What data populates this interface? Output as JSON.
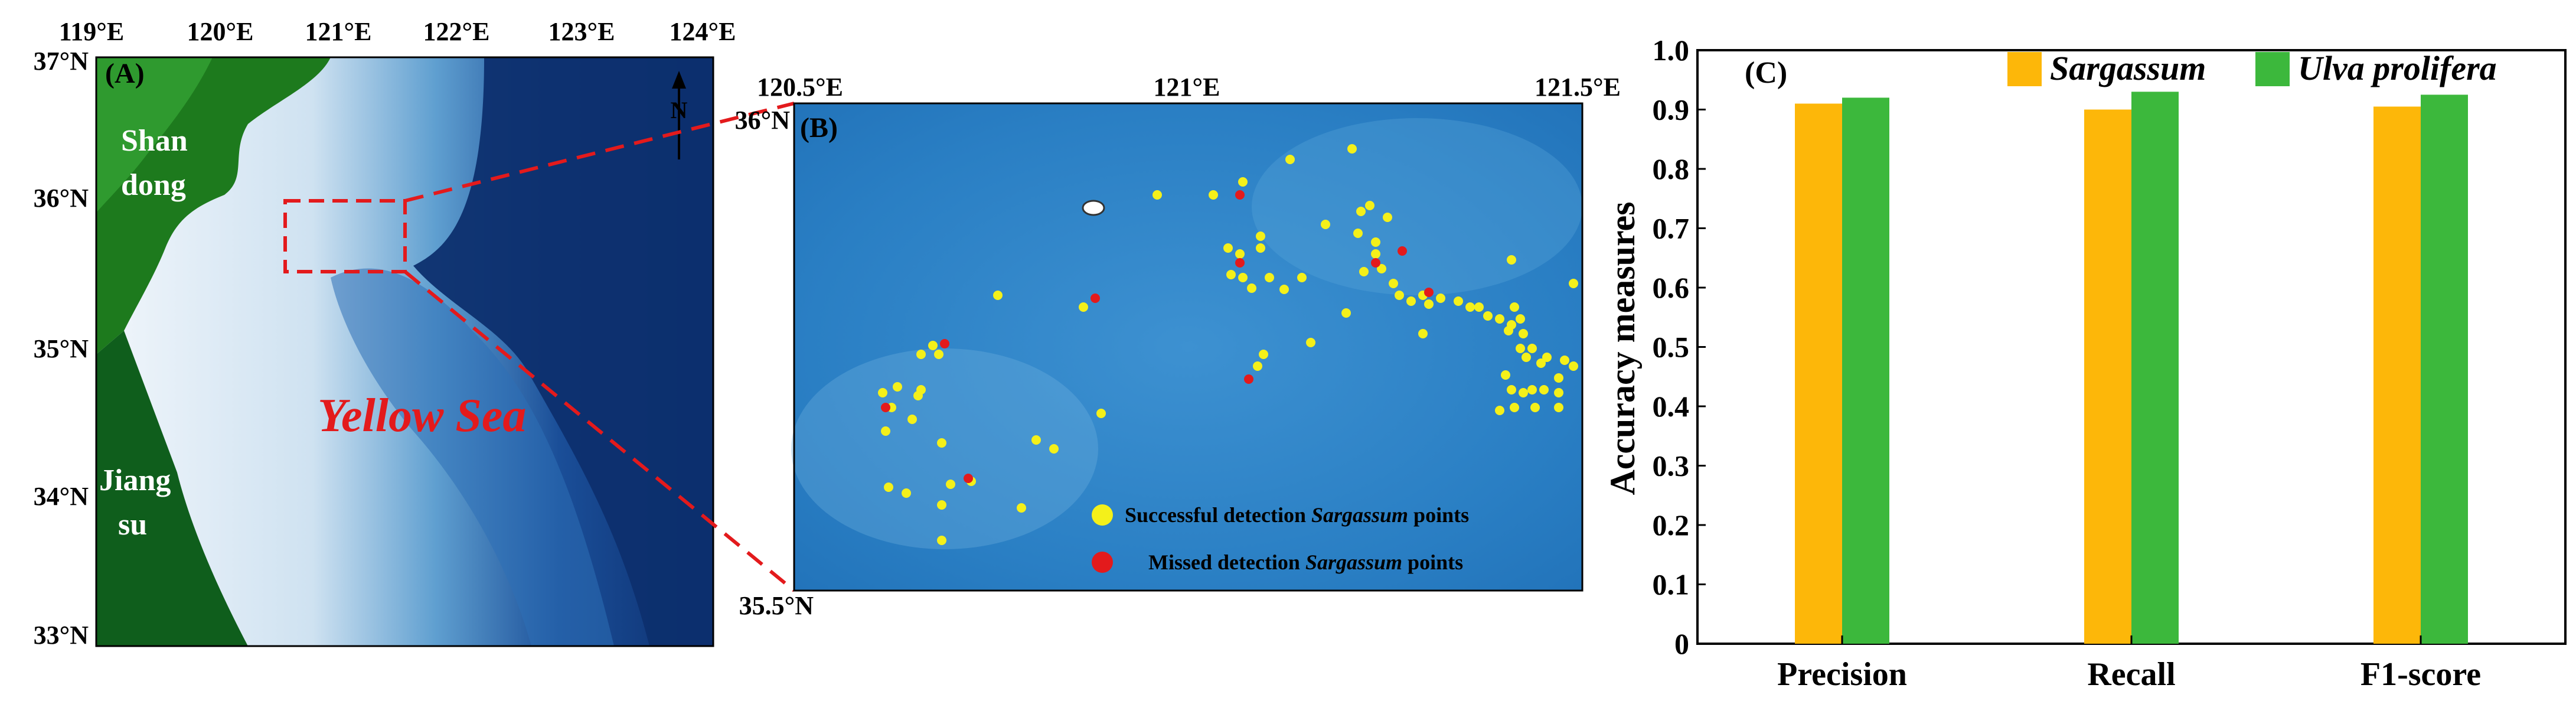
{
  "panel_a": {
    "label": "(A)",
    "lon_ticks": [
      "119°E",
      "120°E",
      "121°E",
      "122°E",
      "123°E",
      "124°E"
    ],
    "lat_ticks": [
      "37°N",
      "36°N",
      "35°N",
      "34°N",
      "33°N"
    ],
    "region_labels": {
      "shandong_1": "Shan",
      "shandong_2": "dong",
      "jiangsu_1": "Jiang",
      "jiangsu_2": "su",
      "sea": "Yellow Sea"
    },
    "north_label": "N",
    "colors": {
      "land": "#1d7a1d",
      "sea_deep": "#0d2f6e",
      "sea_shallow": "#e8f1f8",
      "highlight": "#e31a1c"
    }
  },
  "panel_b": {
    "label": "(B)",
    "lon_ticks": [
      "120.5°E",
      "121°E",
      "121.5°E"
    ],
    "lat_ticks": [
      "36°N",
      "35.5°N"
    ],
    "legend": {
      "success_prefix": "Successful detection ",
      "success_species": "Sargassum",
      "success_suffix": " points",
      "missed_prefix": "Missed detection ",
      "missed_species": "Sargassum",
      "missed_suffix": " points"
    },
    "colors": {
      "success": "#f4f01a",
      "missed": "#e31a1c",
      "water": "#2b83c8"
    }
  },
  "chart_data": {
    "type": "bar",
    "panel_label": "(C)",
    "categories": [
      "Precision",
      "Recall",
      "F1-score"
    ],
    "series": [
      {
        "name": "Sargassum",
        "color": "#fdb709",
        "values": [
          0.91,
          0.9,
          0.905
        ]
      },
      {
        "name": "Ulva prolifera",
        "color": "#3cb83c",
        "values": [
          0.92,
          0.93,
          0.925
        ]
      }
    ],
    "ylabel": "Accuracy measures",
    "ylim": [
      0,
      1.0
    ],
    "yticks": [
      "0",
      "0.1",
      "0.2",
      "0.3",
      "0.4",
      "0.5",
      "0.6",
      "0.7",
      "0.8",
      "0.9",
      "1.0"
    ],
    "grid": false,
    "legend_position": "top"
  }
}
